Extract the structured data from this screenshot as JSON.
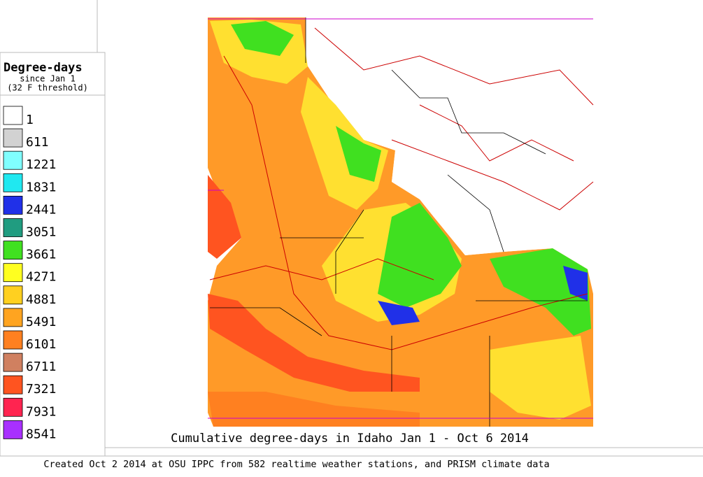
{
  "legend": {
    "title": "Degree-days",
    "subtitle": "since Jan 1",
    "note": "(32 F threshold)",
    "items": [
      {
        "label": "1",
        "color": "#ffffff"
      },
      {
        "label": "611",
        "color": "#d2d2d2"
      },
      {
        "label": "1221",
        "color": "#80ffff"
      },
      {
        "label": "1831",
        "color": "#20e8f0"
      },
      {
        "label": "2441",
        "color": "#2030e8"
      },
      {
        "label": "3051",
        "color": "#209c80"
      },
      {
        "label": "3661",
        "color": "#40e020"
      },
      {
        "label": "4271",
        "color": "#ffff20"
      },
      {
        "label": "4881",
        "color": "#ffd020"
      },
      {
        "label": "5491",
        "color": "#ffa420"
      },
      {
        "label": "6101",
        "color": "#ff8020"
      },
      {
        "label": "6711",
        "color": "#d08060"
      },
      {
        "label": "7321",
        "color": "#ff5420"
      },
      {
        "label": "7931",
        "color": "#ff2450"
      },
      {
        "label": "8541",
        "color": "#a830ff"
      }
    ]
  },
  "title": "Cumulative degree-days in Idaho  Jan 1 - Oct 6 2014",
  "footer": "Created Oct 2 2014 at OSU IPPC from 582 realtime weather stations, and PRISM climate data"
}
